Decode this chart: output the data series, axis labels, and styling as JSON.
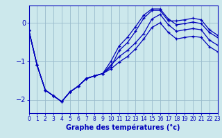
{
  "xlabel": "Graphe des températures (°c)",
  "bg_color": "#cce8ec",
  "grid_color": "#99bbcc",
  "line_color": "#0000bb",
  "xlim": [
    0,
    23
  ],
  "ylim": [
    -2.35,
    0.45
  ],
  "yticks": [
    0,
    -1,
    -2
  ],
  "xticks": [
    0,
    1,
    2,
    3,
    4,
    5,
    6,
    7,
    8,
    9,
    10,
    11,
    12,
    13,
    14,
    15,
    16,
    17,
    18,
    19,
    20,
    21,
    22,
    23
  ],
  "hours": [
    0,
    1,
    2,
    3,
    4,
    5,
    6,
    7,
    8,
    9,
    10,
    11,
    12,
    13,
    14,
    15,
    16,
    17,
    18,
    19,
    20,
    21,
    22,
    23
  ],
  "curve_peak": [
    -0.2,
    -1.1,
    -1.75,
    -1.9,
    -2.05,
    -1.8,
    -1.65,
    -1.45,
    -1.38,
    -1.32,
    -1.15,
    -0.72,
    -0.52,
    -0.22,
    0.12,
    0.32,
    0.32,
    0.05,
    0.05,
    0.08,
    0.12,
    0.08,
    -0.18,
    -0.32
  ],
  "curve_high": [
    -0.2,
    -1.1,
    -1.75,
    -1.9,
    -2.05,
    -1.8,
    -1.65,
    -1.45,
    -1.38,
    -1.32,
    -1.0,
    -0.6,
    -0.38,
    -0.1,
    0.2,
    0.36,
    0.36,
    0.1,
    -0.05,
    -0.02,
    0.02,
    -0.02,
    -0.25,
    -0.38
  ],
  "curve_mid": [
    -0.2,
    -1.1,
    -1.75,
    -1.9,
    -2.05,
    -1.8,
    -1.65,
    -1.45,
    -1.38,
    -1.32,
    -1.1,
    -0.88,
    -0.72,
    -0.52,
    -0.28,
    0.1,
    0.22,
    -0.05,
    -0.22,
    -0.18,
    -0.15,
    -0.18,
    -0.45,
    -0.58
  ],
  "curve_low": [
    -0.2,
    -1.1,
    -1.75,
    -1.9,
    -2.05,
    -1.8,
    -1.65,
    -1.45,
    -1.38,
    -1.32,
    -1.2,
    -1.02,
    -0.88,
    -0.68,
    -0.42,
    -0.12,
    0.0,
    -0.25,
    -0.42,
    -0.38,
    -0.35,
    -0.38,
    -0.62,
    -0.75
  ]
}
